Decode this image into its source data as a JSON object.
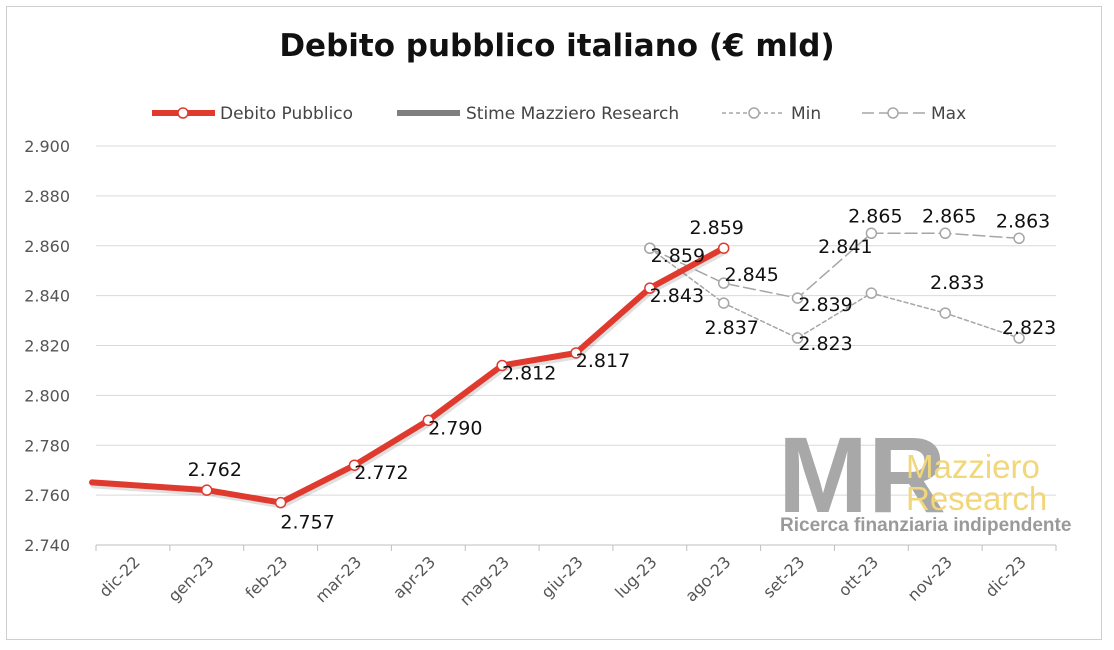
{
  "chart_data": {
    "type": "line",
    "title": "Debito pubblico italiano (€ mld)",
    "categories": [
      "dic-22",
      "gen-23",
      "feb-23",
      "mar-23",
      "apr-23",
      "mag-23",
      "giu-23",
      "lug-23",
      "ago-23",
      "set-23",
      "ott-23",
      "nov-23",
      "dic-23"
    ],
    "ylim": [
      2740,
      2900
    ],
    "yticks": [
      2740,
      2760,
      2780,
      2800,
      2820,
      2840,
      2860,
      2880,
      2900
    ],
    "ytick_labels": [
      "2.740",
      "2.760",
      "2.780",
      "2.800",
      "2.820",
      "2.840",
      "2.860",
      "2.880",
      "2.900"
    ],
    "grid": true,
    "legend_position": "top",
    "series": [
      {
        "name": "Debito Pubblico",
        "color": "#e03a2f",
        "style": "solid",
        "values": [
          2764,
          2762,
          2757,
          2772,
          2790,
          2812,
          2817,
          2843,
          2859,
          null,
          null,
          null,
          null
        ],
        "labels": [
          null,
          "2.762",
          "2.757",
          "2.772",
          "2.790",
          "2.812",
          "2.817",
          "2.843",
          "2.859",
          null,
          null,
          null,
          null
        ]
      },
      {
        "name": "Stime Mazziero Research",
        "color": "#7f7f7f",
        "style": "solid",
        "values": [
          null,
          null,
          null,
          null,
          null,
          null,
          null,
          null,
          null,
          null,
          null,
          null,
          null
        ],
        "labels": []
      },
      {
        "name": "Min",
        "color": "#a6a6a6",
        "style": "short-dash",
        "values": [
          null,
          null,
          null,
          null,
          null,
          null,
          null,
          2859,
          2837,
          2823,
          2841,
          2833,
          2823
        ],
        "labels": [
          null,
          null,
          null,
          null,
          null,
          null,
          null,
          null,
          "2.837",
          "2.823",
          "2.841",
          "2.833",
          "2.823"
        ]
      },
      {
        "name": "Max",
        "color": "#a6a6a6",
        "style": "long-dash",
        "values": [
          null,
          null,
          null,
          null,
          null,
          null,
          null,
          2859,
          2845,
          2839,
          2865,
          2865,
          2863
        ],
        "labels": [
          null,
          null,
          null,
          null,
          null,
          null,
          null,
          "2.859",
          "2.845",
          "2.839",
          "2.865",
          "2.865",
          "2.863"
        ]
      }
    ]
  },
  "logo": {
    "mark": "MR",
    "name_line1": "Mazziero",
    "name_line2": "Research",
    "tagline": "Ricerca finanziaria indipendente"
  }
}
